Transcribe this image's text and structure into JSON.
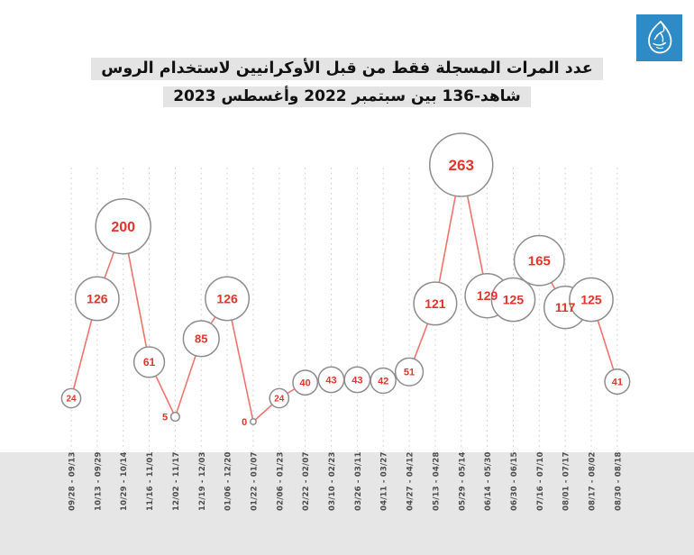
{
  "brand": {
    "name": "Al Jazeera",
    "logo_background": "#2e8bc5",
    "logo_glyph": "al-jazeera-flame"
  },
  "title": {
    "line1": "عدد المرات المسجلة فقط من قبل الأوكرانيين لاستخدام الروس",
    "line2": "شاهد-136 بين سبتمبر 2022 وأغسطس 2023"
  },
  "chart_data": {
    "type": "line",
    "title": "عدد المرات المسجلة فقط من قبل الأوكرانيين لاستخدام الروس شاهد-136 بين سبتمبر 2022 وأغسطس 2023",
    "x_labels": [
      "09/28 - 09/13",
      "10/13 - 09/29",
      "10/29 - 10/14",
      "11/16 - 11/01",
      "12/02 - 11/17",
      "12/19 - 12/03",
      "01/06 - 12/20",
      "01/22 - 01/07",
      "02/06 - 01/23",
      "02/22 - 02/07",
      "03/10 - 02/23",
      "03/26 - 03/11",
      "04/11 - 03/27",
      "04/27 - 04/12",
      "05/13 - 04/28",
      "05/29 - 05/14",
      "06/14 - 05/30",
      "06/30 - 06/15",
      "07/16 - 07/10",
      "08/01 - 07/17",
      "08/17 - 08/02",
      "08/30 - 08/18"
    ],
    "values": [
      24,
      126,
      200,
      61,
      5,
      85,
      126,
      0,
      24,
      40,
      43,
      43,
      42,
      51,
      121,
      263,
      129,
      125,
      165,
      117,
      125,
      41
    ],
    "ylim": [
      0,
      280
    ],
    "xlabel": "",
    "ylabel": "",
    "grid": "vertical-dashed",
    "legend": "none",
    "marker": "circle-area-scaled-by-value",
    "colors": {
      "line": "#f2736d",
      "value_text": "#e5332d",
      "marker_fill": "#ffffff",
      "marker_stroke": "#8d8d8d",
      "grid": "#d0d0d0",
      "axis_label": "#4d4d4d",
      "band": "#e6e6e6",
      "title_highlight": "#e4e4e4"
    }
  }
}
